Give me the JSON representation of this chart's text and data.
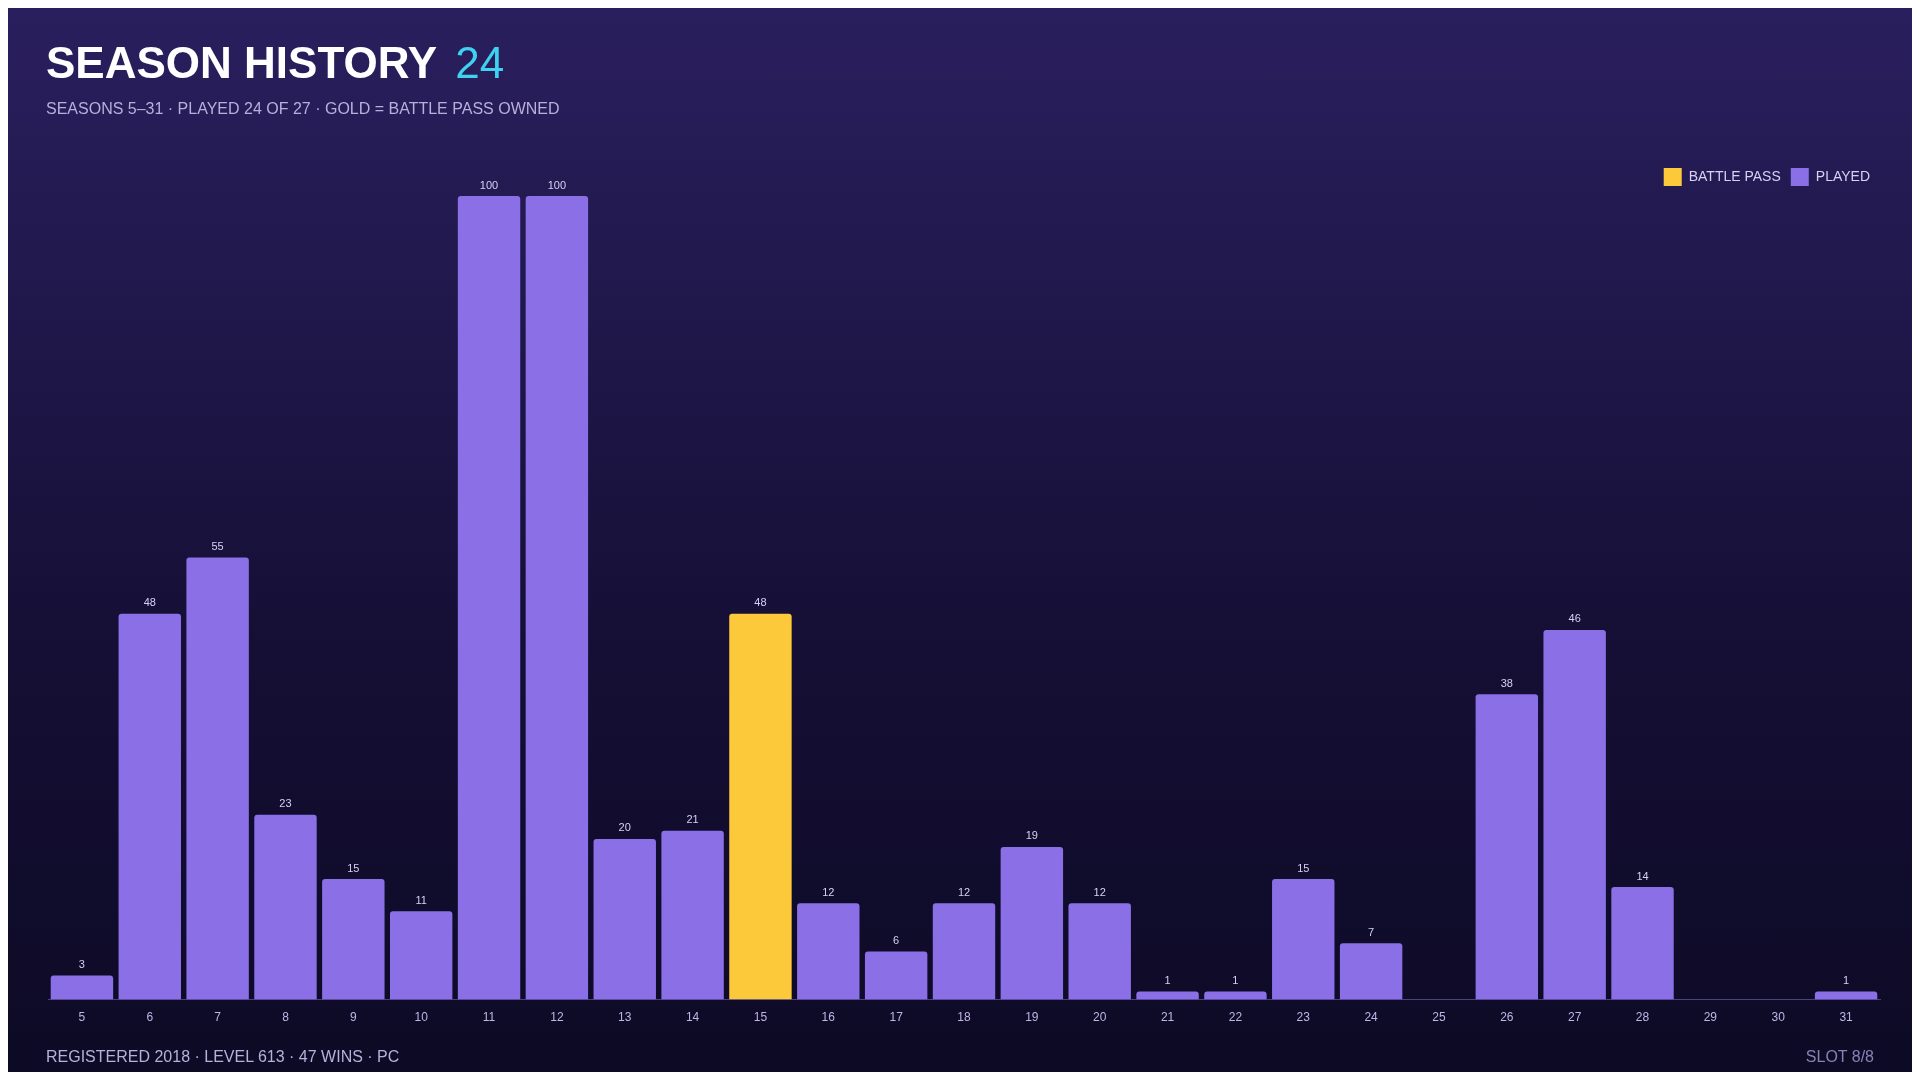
{
  "chart_data": {
    "type": "bar",
    "title": "SEASON HISTORY",
    "subtitle": "SEASONS 5–31 · PLAYED 24 OF 27 · GOLD = BATTLE PASS OWNED",
    "annotations": [
      "24",
      "REGISTERED 2018 · LEVEL 613 · 47 WINS · PC",
      "SLOT 8/8"
    ],
    "categories": [
      "5",
      "6",
      "7",
      "8",
      "9",
      "10",
      "11",
      "12",
      "13",
      "14",
      "15",
      "16",
      "17",
      "18",
      "19",
      "20",
      "21",
      "22",
      "23",
      "24",
      "25",
      "26",
      "27",
      "28",
      "29",
      "30",
      "31"
    ],
    "series": [
      {
        "name": "BATTLE PASS",
        "color": "#fcc93a",
        "values": [
          null,
          null,
          null,
          null,
          null,
          null,
          null,
          null,
          null,
          null,
          48,
          null,
          null,
          null,
          null,
          null,
          null,
          null,
          null,
          null,
          null,
          null,
          null,
          null,
          null,
          null,
          null
        ]
      },
      {
        "name": "PLAYED",
        "color": "#8b6fe6",
        "values": [
          3,
          48,
          55,
          23,
          15,
          11,
          100,
          100,
          20,
          21,
          null,
          12,
          6,
          12,
          19,
          12,
          1,
          1,
          15,
          7,
          null,
          38,
          46,
          14,
          null,
          null,
          1
        ]
      }
    ],
    "data_labels": true,
    "grid": false,
    "legend": "top right",
    "tick_labels": "x",
    "relative": false
  }
}
